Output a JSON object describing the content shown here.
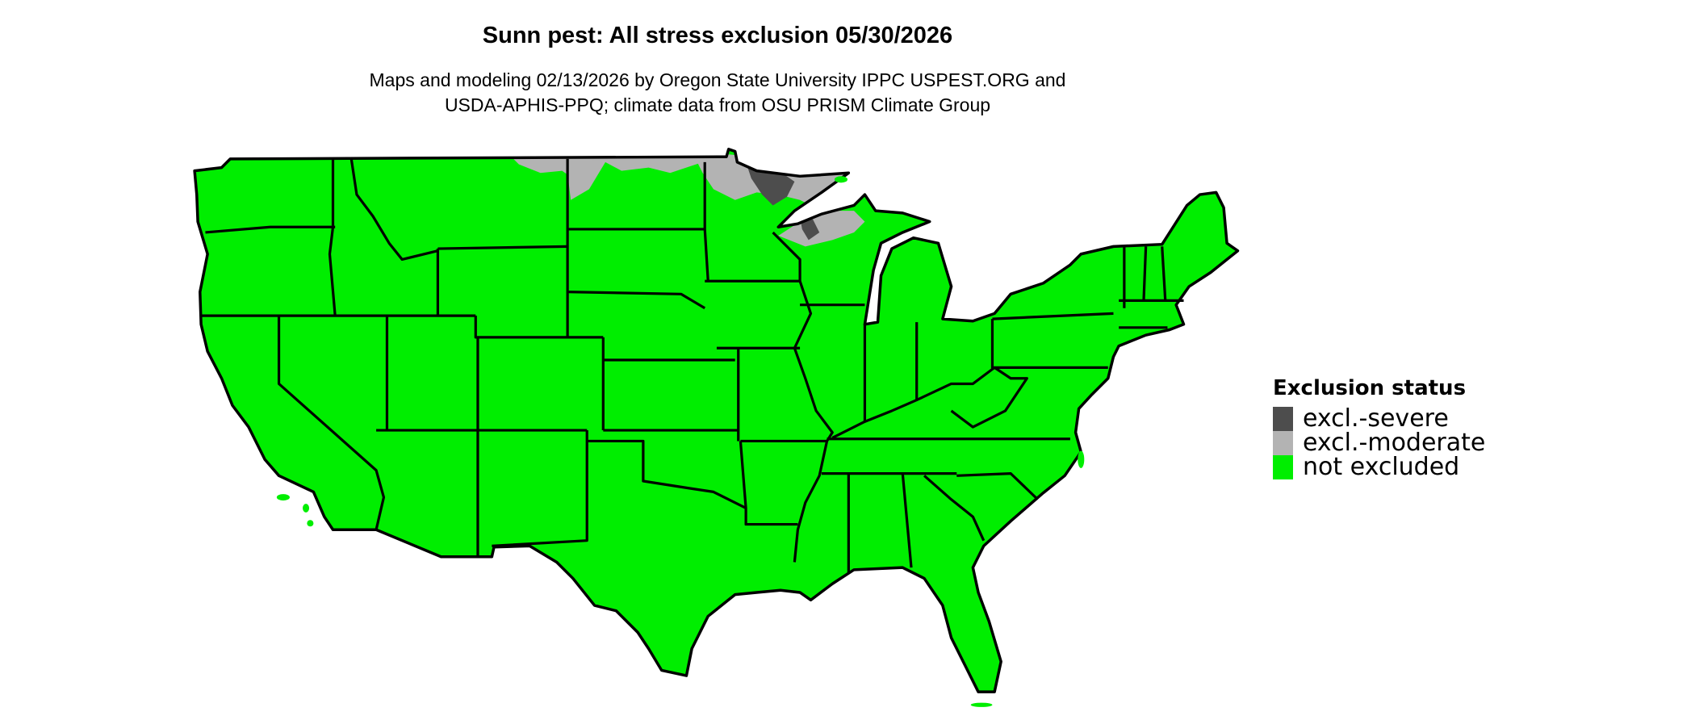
{
  "title": "Sunn pest: All stress exclusion 05/30/2026",
  "subtitle_lines": [
    "Maps and modeling 02/13/2026 by Oregon State University IPPC USPEST.ORG and",
    "USDA-APHIS-PPQ; climate data from OSU PRISM Climate Group"
  ],
  "legend": {
    "title": "Exclusion status",
    "items": [
      {
        "label": "excl.-severe",
        "color": "#4d4d4d"
      },
      {
        "label": "excl.-moderate",
        "color": "#b3b3b3"
      },
      {
        "label": "not excluded",
        "color": "#00ee00"
      }
    ]
  },
  "map": {
    "region": "Contiguous United States",
    "base_color": "#00ee00",
    "border_color": "#000000",
    "excluded_areas": "northern Minnesota, northern Wisconsin, northern North Dakota, northeastern Montana"
  }
}
